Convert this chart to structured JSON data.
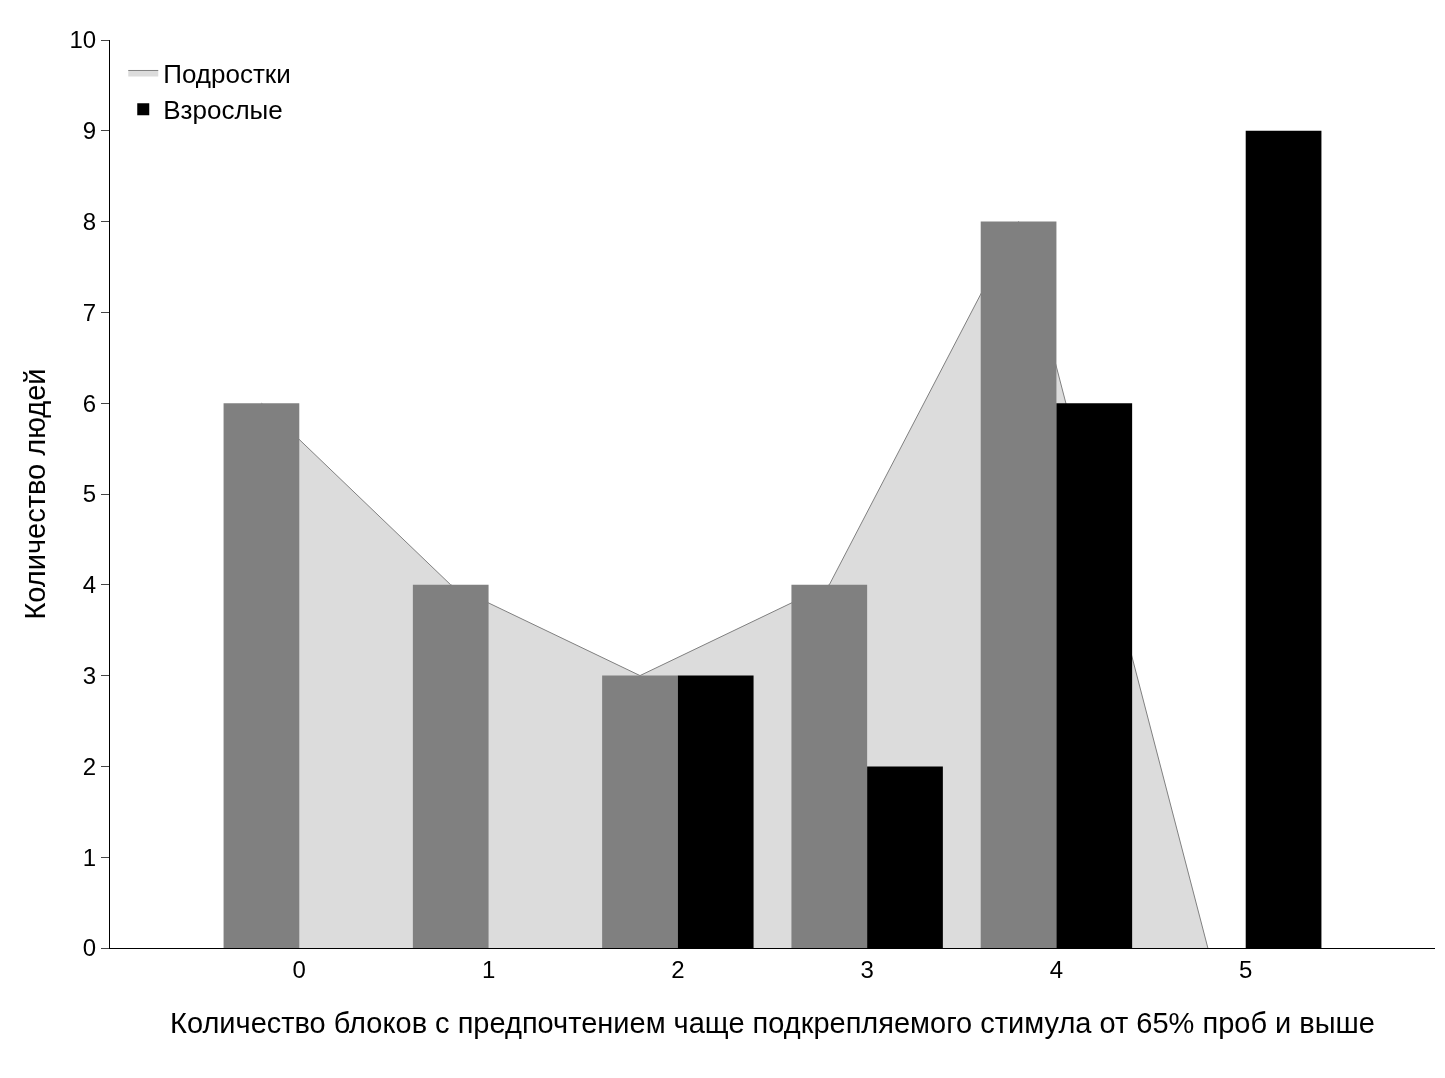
{
  "chart_data": {
    "type": "bar",
    "xlabel": "Количество блоков с предпочтением чаще подкрепляемого стимула от 65% проб и выше",
    "ylabel": "Количество людей",
    "categories": [
      "0",
      "1",
      "2",
      "3",
      "4",
      "5"
    ],
    "series": [
      {
        "color": "#808080",
        "values": [
          6,
          4,
          3,
          4,
          8,
          0
        ]
      },
      {
        "type": "area",
        "name": "Подростки",
        "color": "#dcdcdc",
        "values": [
          6,
          4,
          3,
          4,
          8,
          0
        ]
      },
      {
        "name": "Взрослые",
        "color": "#000000",
        "values": [
          0,
          0,
          3,
          2,
          6,
          9
        ]
      }
    ],
    "ylim": [
      0,
      10
    ],
    "yticks": [
      0,
      1,
      2,
      3,
      4,
      5,
      6,
      7,
      8,
      9,
      10
    ],
    "legend": "top left"
  }
}
